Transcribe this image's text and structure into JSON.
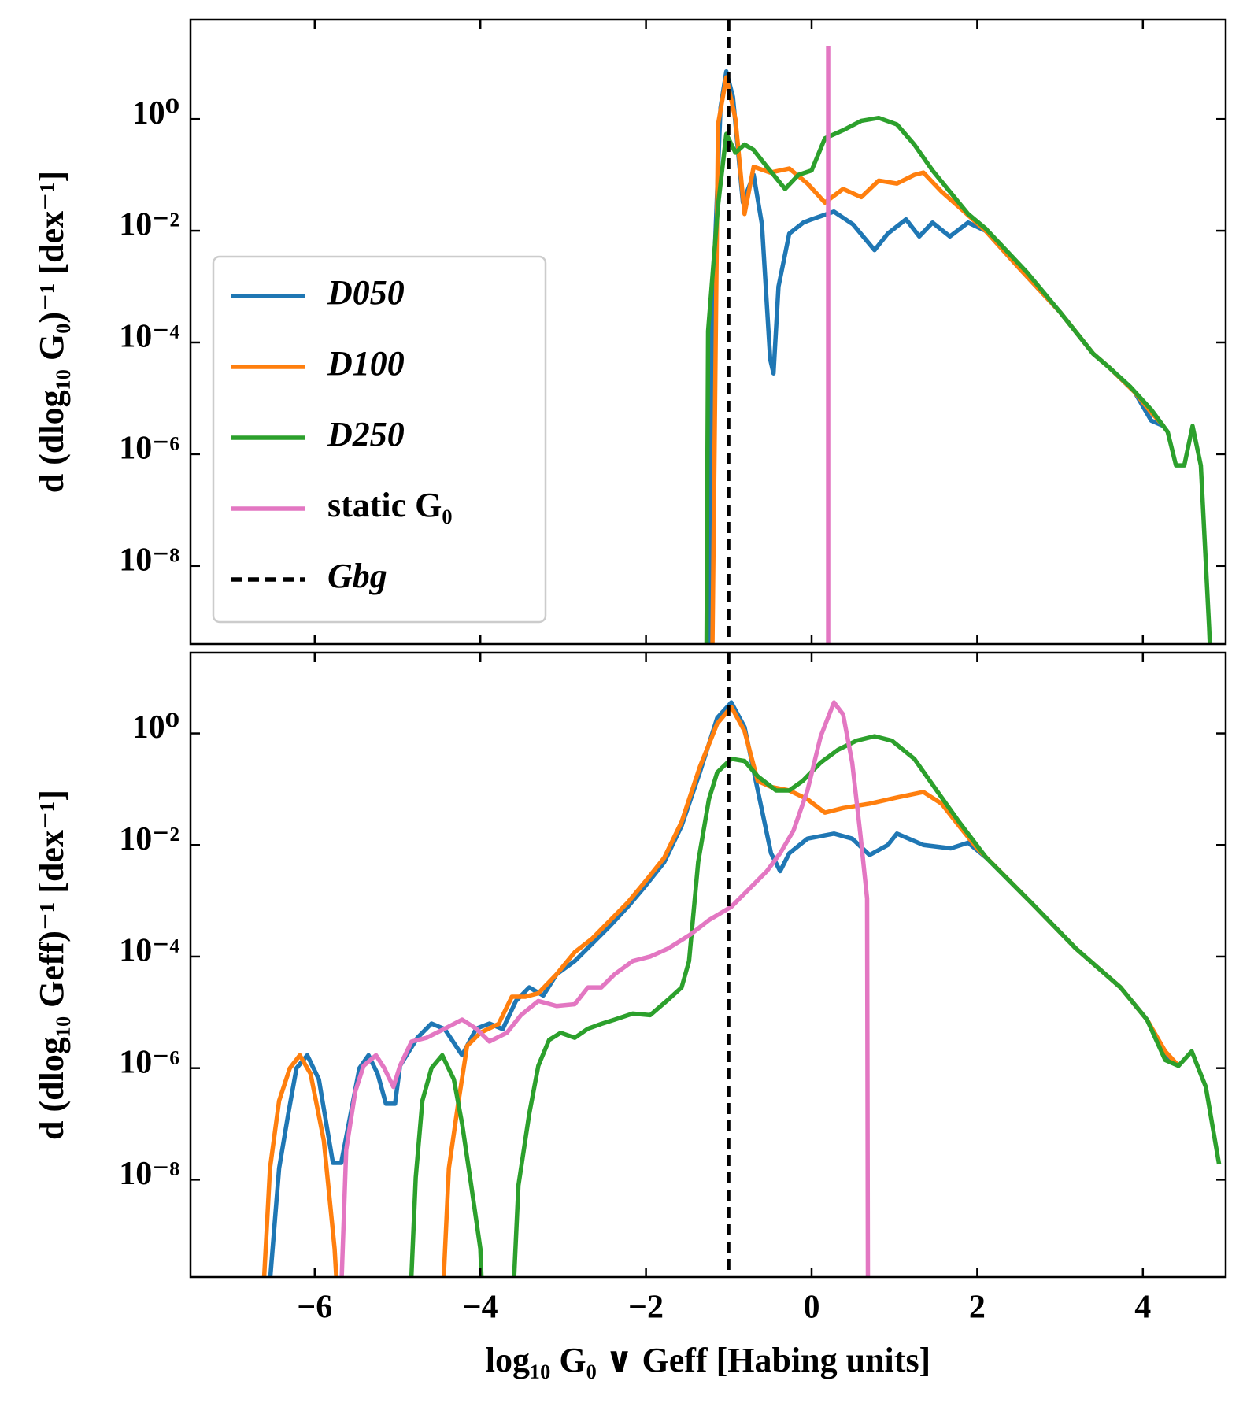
{
  "chart_data": [
    {
      "type": "line",
      "ylabel": "d (dlog₁₀ G₀)⁻¹ [dex⁻¹]",
      "yscale": "log",
      "legend": "center left",
      "xlim": [
        -7.5,
        5
      ],
      "xticks": [
        -6,
        -4,
        -2,
        0,
        2,
        4
      ],
      "ylim": [
        4e-10,
        60
      ],
      "yticks": [
        {
          "value": 1,
          "label": "10⁰"
        },
        {
          "value": 0.01,
          "label": "10⁻²"
        },
        {
          "value": 0.0001,
          "label": "10⁻⁴"
        },
        {
          "value": 1e-06,
          "label": "10⁻⁶"
        },
        {
          "value": 1e-08,
          "label": "10⁻⁸"
        }
      ],
      "series": [
        {
          "name": "D050",
          "color": "#1f77b4",
          "x": [
            -1.25,
            -1.2,
            -1.1,
            -1.03,
            -0.95,
            -0.83,
            -0.7,
            -0.6,
            -0.5,
            -0.46,
            -0.4,
            -0.27,
            -0.1,
            0.0,
            0.27,
            0.5,
            0.76,
            0.92,
            1.14,
            1.3,
            1.46,
            1.67,
            1.89,
            2.1,
            2.5,
            3.0,
            3.4,
            3.6,
            3.9,
            4.1,
            4.25
          ],
          "values": [
            1e-10,
            0.00032,
            1.6,
            7.1,
            2.5,
            0.032,
            0.1,
            0.013,
            5e-05,
            2.8e-05,
            0.001,
            0.0089,
            0.014,
            0.016,
            0.022,
            0.013,
            0.0045,
            0.0089,
            0.016,
            0.0079,
            0.014,
            0.0079,
            0.014,
            0.01,
            0.0022,
            0.00035,
            6.3e-05,
            3.5e-05,
            1.3e-05,
            4e-06,
            3.2e-06
          ]
        },
        {
          "name": "D100",
          "color": "#ff7f0e",
          "x": [
            -1.2,
            -1.13,
            -1.03,
            -0.92,
            -0.81,
            -0.7,
            -0.5,
            -0.27,
            -0.05,
            0.16,
            0.38,
            0.6,
            0.81,
            1.03,
            1.24,
            1.35,
            1.57,
            1.8,
            2.1,
            2.5,
            3.0,
            3.4,
            3.6,
            3.9,
            4.1,
            4.25
          ],
          "values": [
            1.6e-10,
            0.8,
            5.6,
            1,
            0.02,
            0.14,
            0.11,
            0.13,
            0.07,
            0.032,
            0.056,
            0.04,
            0.079,
            0.07,
            0.1,
            0.11,
            0.05,
            0.025,
            0.01,
            0.0022,
            0.00035,
            6.3e-05,
            3.5e-05,
            1.3e-05,
            5.6e-06,
            3.2e-06
          ]
        },
        {
          "name": "D250",
          "color": "#2ca02c",
          "x": [
            -1.27,
            -1.25,
            -1.13,
            -1.03,
            -0.92,
            -0.81,
            -0.7,
            -0.54,
            -0.32,
            -0.16,
            0.0,
            0.16,
            0.38,
            0.6,
            0.81,
            1.03,
            1.24,
            1.46,
            1.67,
            1.89,
            2.1,
            2.6,
            3.0,
            3.4,
            3.6,
            3.85,
            4.1,
            4.3,
            4.4,
            4.5,
            4.6,
            4.7,
            4.8,
            4.82
          ],
          "values": [
            1.6e-10,
            0.00016,
            0.028,
            0.54,
            0.25,
            0.35,
            0.28,
            0.14,
            0.056,
            0.1,
            0.12,
            0.45,
            0.63,
            0.93,
            1.05,
            0.8,
            0.35,
            0.12,
            0.05,
            0.02,
            0.011,
            0.0018,
            0.00035,
            6.3e-05,
            3.5e-05,
            1.6e-05,
            6.3e-06,
            2.5e-06,
            6.3e-07,
            6.3e-07,
            3.2e-06,
            6.3e-07,
            7.9e-10,
            1.6e-10
          ]
        },
        {
          "name": "static G₀",
          "color": "#e377c2",
          "x": [
            0.2,
            0.2
          ],
          "values": [
            1e-10,
            20
          ]
        }
      ],
      "reference_line": {
        "name": "Gbg",
        "x": -1,
        "color": "#000000",
        "style": "dashed"
      }
    },
    {
      "type": "line",
      "ylabel": "d (dlog₁₀ Geff)⁻¹ [dex⁻¹]",
      "xlabel": "log₁₀ G₀ ∨ Geff [Habing units]",
      "yscale": "log",
      "xlim": [
        -7.5,
        5
      ],
      "xticks": [
        {
          "value": -6,
          "label": "−6"
        },
        {
          "value": -4,
          "label": "−4"
        },
        {
          "value": -2,
          "label": "−2"
        },
        0,
        2,
        4
      ],
      "ylim": [
        1.8e-10,
        28
      ],
      "yticks": [
        {
          "value": 1,
          "label": "10⁰"
        },
        {
          "value": 0.01,
          "label": "10⁻²"
        },
        {
          "value": 0.0001,
          "label": "10⁻⁴"
        },
        {
          "value": 1e-06,
          "label": "10⁻⁶"
        },
        {
          "value": 1e-08,
          "label": "10⁻⁸"
        }
      ],
      "series": [
        {
          "color": "#1f77b4",
          "x": [
            -6.55,
            -6.43,
            -6.32,
            -6.22,
            -6.09,
            -5.95,
            -5.78,
            -5.68,
            -5.46,
            -5.35,
            -5.24,
            -5.14,
            -5.03,
            -4.97,
            -4.76,
            -4.59,
            -4.43,
            -4.22,
            -4.05,
            -3.89,
            -3.73,
            -3.57,
            -3.41,
            -3.24,
            -3.08,
            -2.86,
            -2.65,
            -2.43,
            -2.22,
            -2.0,
            -1.78,
            -1.57,
            -1.35,
            -1.14,
            -0.97,
            -0.81,
            -0.65,
            -0.49,
            -0.38,
            -0.27,
            -0.05,
            0.27,
            0.49,
            0.7,
            0.92,
            1.03,
            1.35,
            1.68,
            1.89,
            2.11,
            2.65,
            3.19,
            3.73,
            4.05,
            4.27,
            4.43
          ],
          "values": [
            1e-10,
            1.6e-08,
            1.5e-07,
            1e-06,
            1.7e-06,
            6.3e-07,
            2e-08,
            2e-08,
            1e-06,
            1.7e-06,
            7.9e-07,
            2.3e-07,
            2.3e-07,
            1.1e-06,
            3.5e-06,
            6.3e-06,
            5e-06,
            1.7e-06,
            5.1e-06,
            6.3e-06,
            5e-06,
            1.6e-05,
            2.8e-05,
            2e-05,
            4.8e-05,
            8.3e-05,
            0.00017,
            0.00036,
            0.00078,
            0.0019,
            0.0049,
            0.022,
            0.2,
            1.9,
            3.6,
            1.3,
            0.095,
            0.0071,
            0.0034,
            0.0071,
            0.013,
            0.016,
            0.013,
            0.0066,
            0.01,
            0.016,
            0.01,
            0.0087,
            0.011,
            0.0059,
            0.00093,
            0.00014,
            2.8e-05,
            7.4e-06,
            1.7e-06,
            1.1e-06
          ]
        },
        {
          "color": "#ff7f0e",
          "x": [
            -6.62,
            -6.54,
            -6.43,
            -6.3,
            -6.18,
            -6.05,
            -5.89,
            -5.76,
            -5.73,
            -4.45,
            -4.38,
            -4.27,
            -4.16,
            -4.0,
            -3.78,
            -3.62,
            -3.46,
            -3.3,
            -3.08,
            -2.86,
            -2.65,
            -2.43,
            -2.22,
            -2.0,
            -1.78,
            -1.57,
            -1.35,
            -1.14,
            -0.97,
            -0.81,
            -0.65,
            -0.49,
            -0.27,
            -0.05,
            0.16,
            0.38,
            0.7,
            1.03,
            1.35,
            1.57,
            1.78,
            2.0,
            2.65,
            3.19,
            3.73,
            4.05,
            4.27,
            4.43
          ],
          "values": [
            1e-10,
            1.6e-08,
            2.6e-07,
            1e-06,
            1.7e-06,
            7.9e-07,
            5e-08,
            5.8e-10,
            1e-10,
            1e-10,
            1.6e-08,
            2.2e-07,
            2.5e-06,
            4.3e-06,
            6.2e-06,
            1.9e-05,
            1.9e-05,
            2.2e-05,
            4.8e-05,
            0.00012,
            0.00021,
            0.00045,
            0.00093,
            0.0023,
            0.0059,
            0.026,
            0.25,
            1.5,
            3.0,
            1.1,
            0.14,
            0.11,
            0.095,
            0.066,
            0.038,
            0.046,
            0.055,
            0.071,
            0.089,
            0.055,
            0.022,
            0.0087,
            0.00093,
            0.00014,
            2.8e-05,
            7.4e-06,
            2e-06,
            1.1e-06
          ]
        },
        {
          "color": "#2ca02c",
          "x": [
            -4.84,
            -4.78,
            -4.7,
            -4.59,
            -4.46,
            -4.32,
            -4.22,
            -4.11,
            -4.0,
            -3.98,
            -3.6,
            -3.54,
            -3.41,
            -3.3,
            -3.17,
            -3.03,
            -2.86,
            -2.7,
            -2.54,
            -2.38,
            -2.16,
            -1.95,
            -1.73,
            -1.57,
            -1.48,
            -1.37,
            -1.24,
            -1.14,
            -0.97,
            -0.81,
            -0.65,
            -0.43,
            -0.27,
            -0.11,
            0.11,
            0.32,
            0.54,
            0.76,
            0.97,
            1.24,
            1.51,
            1.78,
            2.11,
            2.65,
            3.19,
            3.73,
            4.05,
            4.27,
            4.43,
            4.59,
            4.76,
            4.92
          ],
          "values": [
            1e-10,
            1.1e-08,
            2.6e-07,
            1e-06,
            1.7e-06,
            6.3e-07,
            1e-07,
            7.9e-09,
            5.8e-10,
            1e-10,
            1e-10,
            7.9e-09,
            1.5e-07,
            1.1e-06,
            3.2e-06,
            4.3e-06,
            3.5e-06,
            5.1e-06,
            6.2e-06,
            7.4e-06,
            9.5e-06,
            8.9e-06,
            1.7e-05,
            2.8e-05,
            8.3e-05,
            0.0049,
            0.066,
            0.2,
            0.35,
            0.32,
            0.17,
            0.095,
            0.095,
            0.14,
            0.3,
            0.51,
            0.74,
            0.89,
            0.74,
            0.35,
            0.095,
            0.026,
            0.0059,
            0.00093,
            0.00014,
            2.8e-05,
            7.4e-06,
            1.4e-06,
            1.1e-06,
            2e-06,
            4.6e-07,
            1.9e-08
          ]
        },
        {
          "color": "#e377c2",
          "x": [
            -5.68,
            -5.62,
            -5.51,
            -5.41,
            -5.26,
            -5.16,
            -5.05,
            -4.97,
            -4.83,
            -4.65,
            -4.43,
            -4.22,
            -4.05,
            -3.89,
            -3.68,
            -3.51,
            -3.3,
            -3.08,
            -2.86,
            -2.7,
            -2.54,
            -2.38,
            -2.16,
            -1.95,
            -1.73,
            -1.46,
            -1.24,
            -0.97,
            -0.76,
            -0.54,
            -0.38,
            -0.22,
            -0.05,
            0.11,
            0.27,
            0.38,
            0.49,
            0.59,
            0.67,
            0.68
          ],
          "values": [
            1e-10,
            3.4e-08,
            3.8e-07,
            1.1e-06,
            1.7e-06,
            1e-06,
            4.6e-07,
            1.1e-06,
            3e-06,
            3.5e-06,
            5.1e-06,
            7.4e-06,
            5.1e-06,
            3e-06,
            4.3e-06,
            8.9e-06,
            1.6e-05,
            1.3e-05,
            1.4e-05,
            2.8e-05,
            2.8e-05,
            4.8e-05,
            8.3e-05,
            0.0001,
            0.00014,
            0.00025,
            0.00045,
            0.00078,
            0.0016,
            0.0034,
            0.0071,
            0.018,
            0.095,
            0.89,
            3.6,
            2.2,
            0.3,
            0.015,
            0.0011,
            1e-10
          ]
        }
      ],
      "reference_line": {
        "x": -1,
        "color": "#000000",
        "style": "dashed"
      }
    }
  ]
}
